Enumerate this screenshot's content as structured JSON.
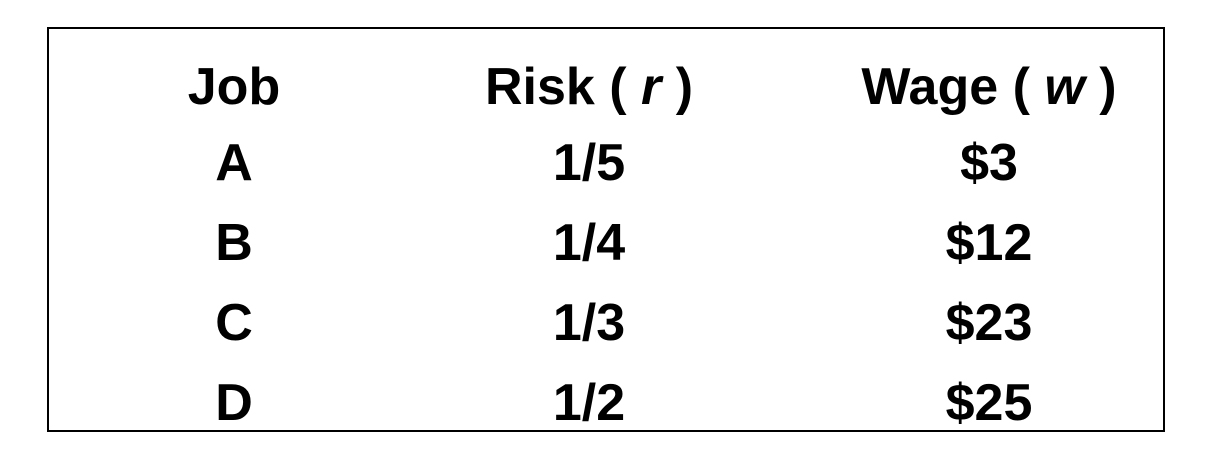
{
  "table": {
    "headers": {
      "job": "Job",
      "risk_prefix": "Risk ( ",
      "risk_var": "r",
      "risk_suffix": " )",
      "wage_prefix": "Wage ( ",
      "wage_var": "w",
      "wage_suffix": " )"
    },
    "rows": [
      {
        "job": "A",
        "risk": "1/5",
        "wage": "$3"
      },
      {
        "job": "B",
        "risk": "1/4",
        "wage": "$12"
      },
      {
        "job": "C",
        "risk": "1/3",
        "wage": "$23"
      },
      {
        "job": "D",
        "risk": "1/2",
        "wage": "$25"
      }
    ]
  }
}
